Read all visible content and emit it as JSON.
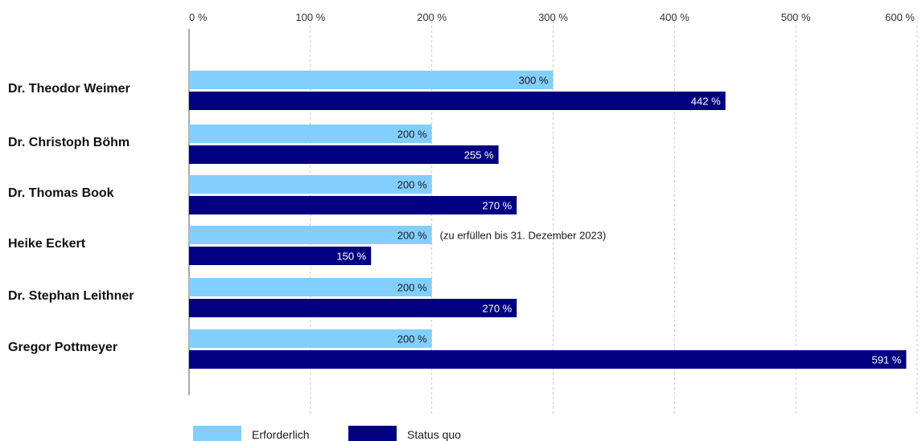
{
  "chart_data": {
    "type": "bar",
    "orientation": "horizontal",
    "xlim": [
      0,
      600
    ],
    "ticks": [
      "0 %",
      "100 %",
      "200 %",
      "300 %",
      "400 %",
      "500 %",
      "600 %"
    ],
    "tick_values": [
      0,
      100,
      200,
      300,
      400,
      500,
      600
    ],
    "grid": true,
    "legend_position": "bottom-left",
    "categories": [
      "Dr. Theodor Weimer",
      "Dr. Christoph Böhm",
      "Dr. Thomas Book",
      "Heike Eckert",
      "Dr. Stephan Leithner",
      "Gregor Pottmeyer"
    ],
    "series": [
      {
        "name": "Erforderlich",
        "color": "#82cffd",
        "values": [
          300,
          200,
          200,
          200,
          200,
          200
        ],
        "labels": [
          "300 %",
          "200 %",
          "200 %",
          "200 %",
          "200 %",
          "200 %"
        ]
      },
      {
        "name": "Status quo",
        "color": "#000080",
        "values": [
          442,
          255,
          270,
          150,
          270,
          591
        ],
        "labels": [
          "442 %",
          "255 %",
          "270 %",
          "150 %",
          "270 %",
          "591 %"
        ]
      }
    ],
    "annotations": [
      {
        "category_index": 3,
        "text": "(zu erfüllen bis 31. Dezember 2023)"
      }
    ]
  }
}
